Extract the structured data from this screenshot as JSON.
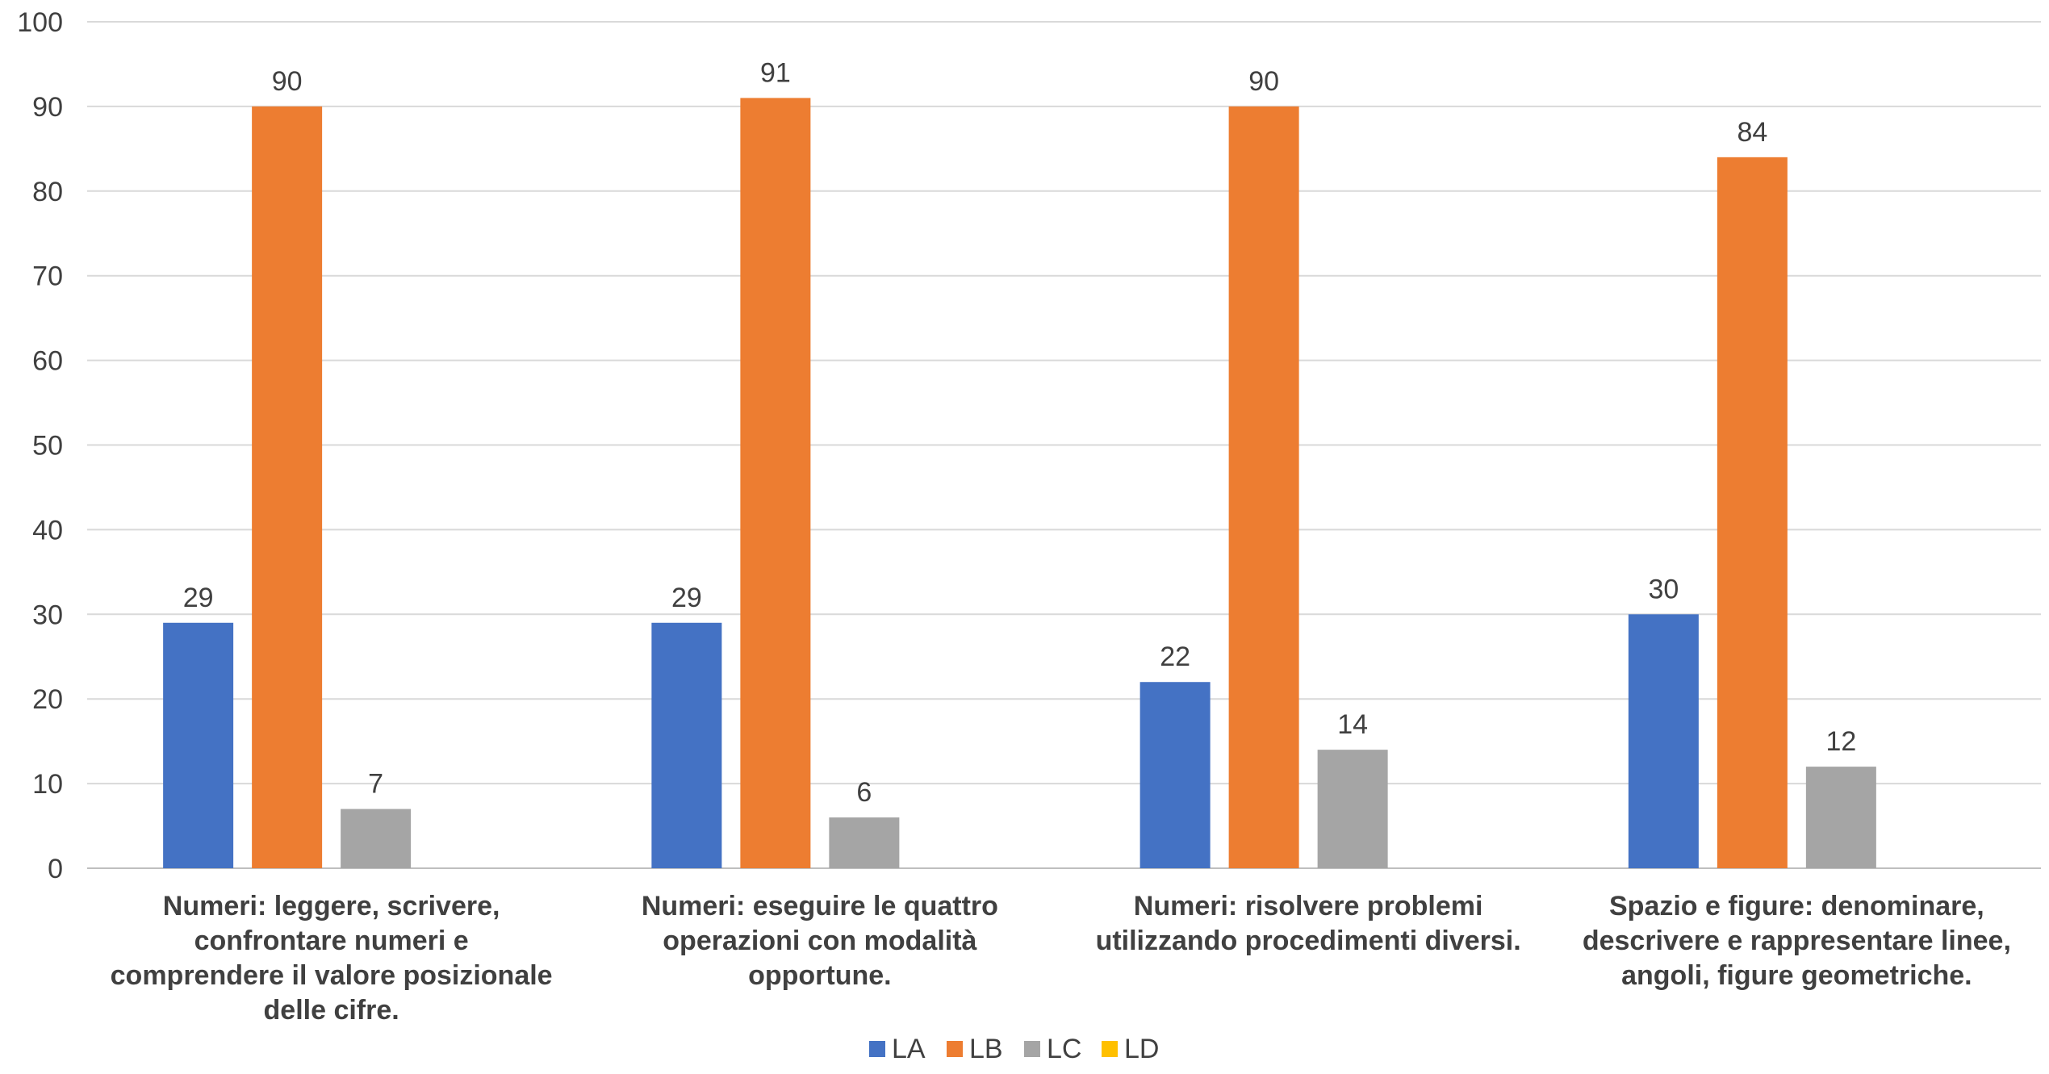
{
  "chart_data": {
    "type": "bar",
    "categories": [
      [
        "Numeri: leggere, scrivere,",
        "confrontare numeri e",
        "comprendere il valore posizionale",
        "delle cifre."
      ],
      [
        "Numeri: eseguire le quattro",
        "operazioni con modalità",
        "opportune."
      ],
      [
        "Numeri: risolvere problemi",
        "utilizzando procedimenti diversi."
      ],
      [
        "Spazio e figure: denominare,",
        "descrivere e rappresentare linee,",
        "angoli, figure geometriche."
      ]
    ],
    "series": [
      {
        "name": "LA",
        "color": "#4472C4",
        "values": [
          29,
          29,
          22,
          30
        ]
      },
      {
        "name": "LB",
        "color": "#ED7D31",
        "values": [
          90,
          91,
          90,
          84
        ]
      },
      {
        "name": "LC",
        "color": "#A5A5A5",
        "values": [
          7,
          6,
          14,
          12
        ]
      },
      {
        "name": "LD",
        "color": "#FFC000",
        "values": [
          null,
          null,
          null,
          null
        ]
      }
    ],
    "ylim": [
      0,
      100
    ],
    "yticks": [
      "0",
      "10",
      "20",
      "30",
      "40",
      "50",
      "60",
      "70",
      "80",
      "90",
      "100"
    ],
    "grid": true,
    "legend_position": "bottom",
    "title": "",
    "xlabel": "",
    "ylabel": ""
  }
}
